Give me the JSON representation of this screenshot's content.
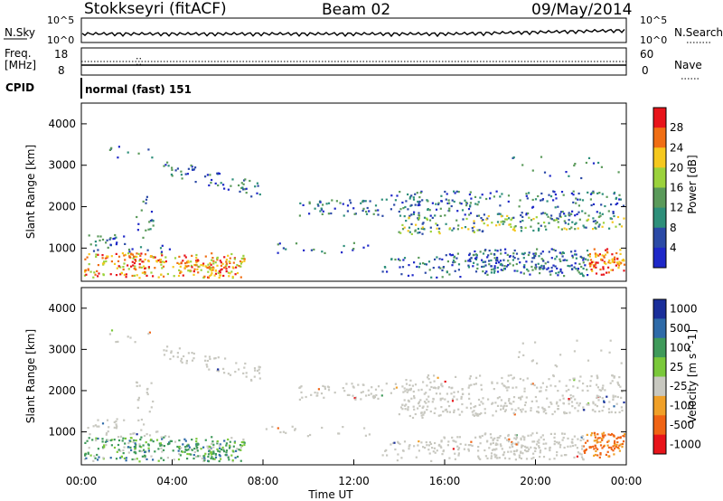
{
  "header": {
    "station": "Stokkseyri (fitACF)",
    "beam": "Beam 02",
    "date": "09/May/2014"
  },
  "status_panels": {
    "nsky_label": "N.Sky",
    "nsky_ticks": [
      "10^5",
      "10^0"
    ],
    "nsearch_label": "N.Search",
    "nsearch_ticks": [
      "10^5",
      "10^0"
    ],
    "freq_label_1": "Freq.",
    "freq_label_2": "[MHz]",
    "freq_ticks": [
      "18",
      "8"
    ],
    "nave_label": "Nave",
    "nave_ticks": [
      "60",
      "0"
    ],
    "cpid_label": "CPID",
    "cpid_value": "normal (fast) 151"
  },
  "chart_data": [
    {
      "type": "heatmap",
      "panel": "power",
      "xlabel": "",
      "ylabel": "Slant Range [km]",
      "ylim": [
        200,
        4500
      ],
      "yticks": [
        "1000",
        "2000",
        "3000",
        "4000"
      ],
      "colorbar_label": "Power [dB]",
      "colorbar_ticks": [
        "28",
        "24",
        "20",
        "16",
        "12",
        "8",
        "4"
      ],
      "colorbar_colors": [
        "#e8141a",
        "#f06e14",
        "#f5c81e",
        "#9bd23c",
        "#5a9a5a",
        "#2e8f7a",
        "#2b4aa6",
        "#1e28c8"
      ]
    },
    {
      "type": "heatmap",
      "panel": "velocity",
      "xlabel": "Time UT",
      "ylabel": "Slant Range [km]",
      "xticks": [
        "00:00",
        "04:00",
        "08:00",
        "12:00",
        "16:00",
        "20:00",
        "00:00"
      ],
      "ylim": [
        200,
        4500
      ],
      "yticks": [
        "1000",
        "2000",
        "3000",
        "4000"
      ],
      "colorbar_label": "Velocity [m s^-1]",
      "colorbar_ticks": [
        "1000",
        "500",
        "100",
        "25",
        "-25",
        "-100",
        "-500",
        "-1000"
      ],
      "colorbar_colors": [
        "#1a2e9a",
        "#2e6aa8",
        "#3f9a5a",
        "#7ac83a",
        "#c8c8c0",
        "#f0a028",
        "#f06414",
        "#e8141a"
      ]
    }
  ]
}
